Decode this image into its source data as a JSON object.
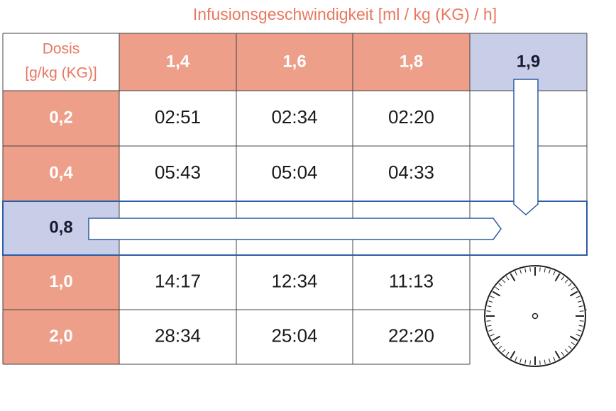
{
  "header": {
    "title": "Infusionsgeschwindigkeit [ml / kg (KG) / h]"
  },
  "table": {
    "corner": [
      "Dosis",
      "[g/kg (KG)]"
    ],
    "columns": [
      "1,4",
      "1,6",
      "1,8",
      "1,9"
    ],
    "rows": [
      {
        "label": "0,2",
        "cells": [
          "02:51",
          "02:34",
          "02:20"
        ]
      },
      {
        "label": "0,4",
        "cells": [
          "05:43",
          "05:04",
          "04:33"
        ]
      },
      {
        "label": "0,8"
      },
      {
        "label": "1,0",
        "cells": [
          "14:17",
          "12:34",
          "11:13"
        ]
      },
      {
        "label": "2,0",
        "cells": [
          "28:34",
          "25:04",
          "22:20"
        ]
      }
    ],
    "highlight_row": 2,
    "highlight_column": 3
  }
}
